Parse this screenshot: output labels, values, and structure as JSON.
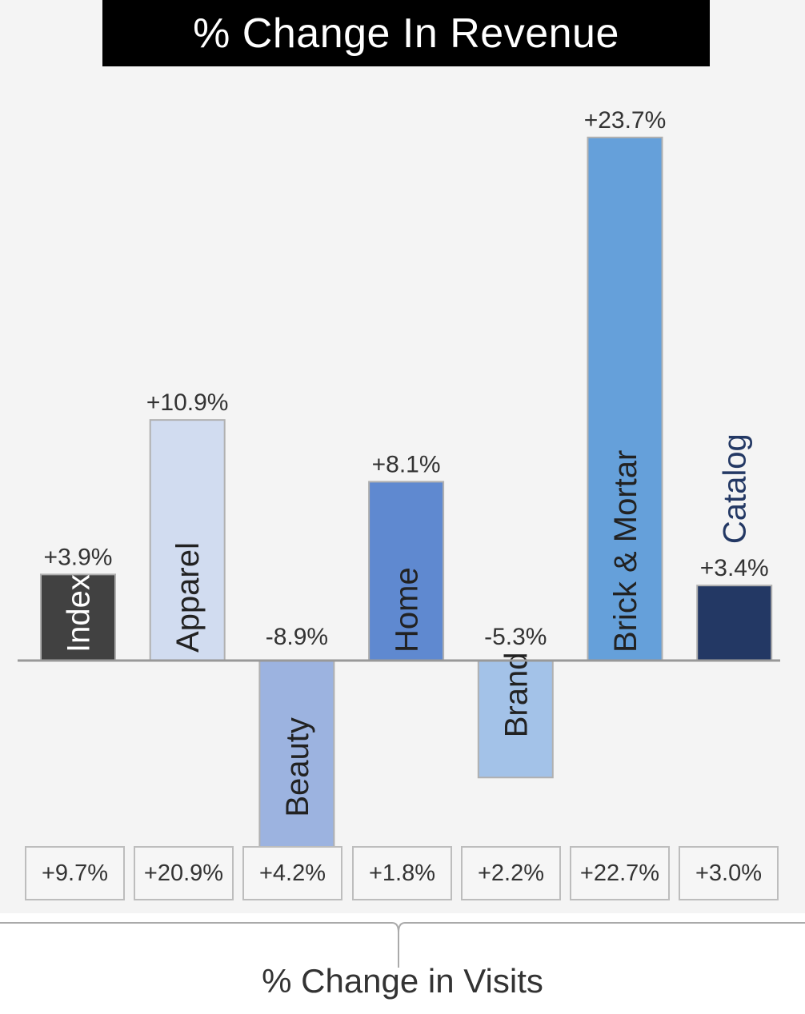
{
  "title": "% Change In Revenue",
  "visits_label": "% Change in Visits",
  "chart_data": {
    "type": "bar",
    "title": "% Change In Revenue",
    "categories": [
      "Index",
      "Apparel",
      "Beauty",
      "Home",
      "Brand",
      "Brick & Mortar",
      "Catalog"
    ],
    "values": [
      3.9,
      10.9,
      -8.9,
      8.1,
      -5.3,
      23.7,
      3.4
    ],
    "value_labels": [
      "+3.9%",
      "+10.9%",
      "-8.9%",
      "+8.1%",
      "-5.3%",
      "+23.7%",
      "+3.4%"
    ],
    "colors": [
      "#414141",
      "#d1dcf0",
      "#9cb3e0",
      "#5f89d0",
      "#a3c2e8",
      "#65a0da",
      "#233864"
    ],
    "label_colors": [
      "#ffffff",
      "#222222",
      "#222222",
      "#222222",
      "#222222",
      "#222222",
      "#233864"
    ],
    "visits": [
      9.7,
      20.9,
      4.2,
      1.8,
      2.2,
      22.7,
      3.0
    ],
    "visit_labels": [
      "+9.7%",
      "+20.9%",
      "+4.2%",
      "+1.8%",
      "+2.2%",
      "+22.7%",
      "+3.0%"
    ],
    "axis_color": "#999999"
  }
}
